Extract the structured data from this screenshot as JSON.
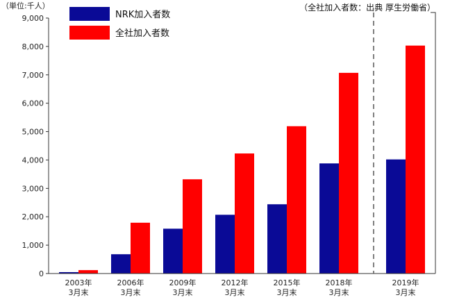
{
  "unit_label": "（単位:千人）",
  "source_note": "（全社加入者数：出典 厚生労働省）",
  "colors": {
    "nrk": "#0a0a96",
    "all": "#ff0000",
    "axis": "#333333",
    "divider": "#555555"
  },
  "chart_data": {
    "type": "bar",
    "categories": [
      [
        "2003年",
        "3月末"
      ],
      [
        "2006年",
        "3月末"
      ],
      [
        "2009年",
        "3月末"
      ],
      [
        "2012年",
        "3月末"
      ],
      [
        "2015年",
        "3月末"
      ],
      [
        "2018年",
        "3月末"
      ],
      [
        "2019年",
        "3月末"
      ]
    ],
    "series": [
      {
        "name": "NRK加入者数",
        "values": [
          50,
          680,
          1580,
          2070,
          2440,
          3880,
          4020
        ]
      },
      {
        "name": "全社加入者数",
        "values": [
          120,
          1790,
          3320,
          4230,
          5190,
          7070,
          8030
        ]
      }
    ],
    "yticks": [
      "0",
      "1,000",
      "2,000",
      "3,000",
      "4,000",
      "5,000",
      "6,000",
      "7,000",
      "8,000",
      "9,000"
    ],
    "ylim": [
      0,
      9000
    ],
    "grid": false,
    "legend_position": "top-left"
  }
}
